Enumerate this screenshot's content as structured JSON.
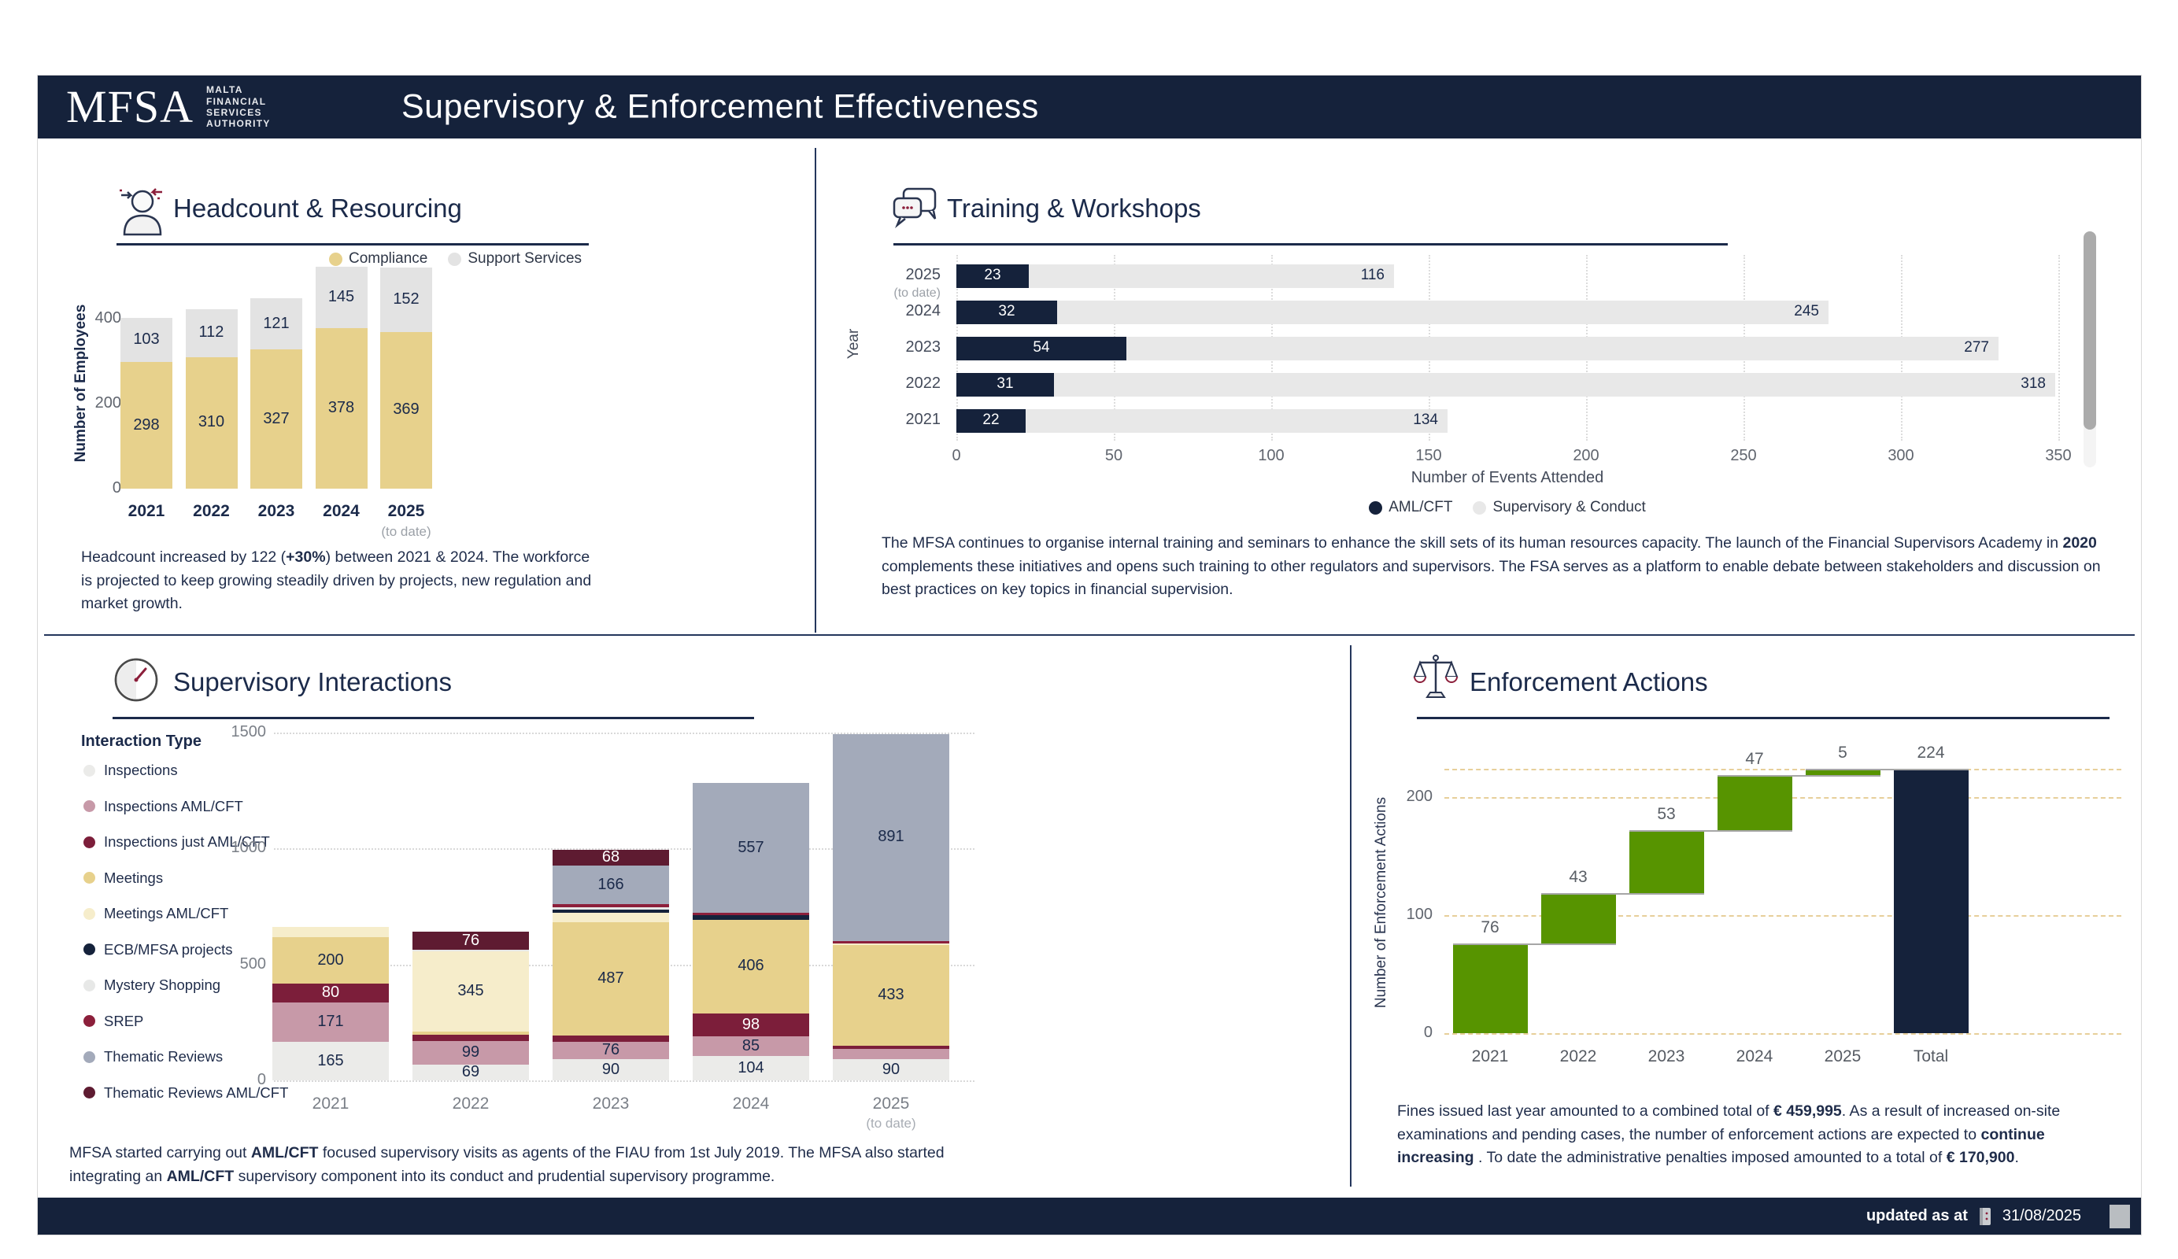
{
  "header": {
    "logo": "MFSA",
    "logo_lines": [
      "MALTA",
      "FINANCIAL",
      "SERVICES",
      "AUTHORITY"
    ],
    "title": "Supervisory & Enforcement Effectiveness"
  },
  "footer": {
    "updated_label": "updated as at",
    "date": "31/08/2025"
  },
  "icons": {
    "person-icon": "person outline with red/navy arrows",
    "chat-icon": "speech bubbles with dots",
    "gauge-icon": "speedometer dial with maroon needle",
    "scales-icon": "scales of justice",
    "calendar-icon": "small calendar slicer glyph"
  },
  "sections": {
    "headcount": {
      "title": "Headcount & Resourcing",
      "note": [
        {
          "t": "Headcount increased by 122 ("
        },
        {
          "t": "+30%",
          "b": true
        },
        {
          "t": ") between 2021 & 2024. The workforce is projected to keep growing steadily driven by projects, new regulation and market growth."
        }
      ]
    },
    "training": {
      "title": "Training & Workshops",
      "note": [
        {
          "t": "The MFSA continues to organise internal training and seminars to enhance the skill sets of its human resources capacity. The launch of the Financial Supervisors Academy in "
        },
        {
          "t": "2020",
          "b": true
        },
        {
          "t": " complements these initiatives and opens such training to other regulators and supervisors. The FSA serves as a platform to enable debate between stakeholders and discussion on best practices on key topics in financial supervision."
        }
      ]
    },
    "interactions": {
      "title": "Supervisory Interactions",
      "legend_title": "Interaction Type",
      "note": [
        {
          "t": "MFSA started carrying out "
        },
        {
          "t": "AML/CFT",
          "b": true
        },
        {
          "t": " focused supervisory visits as agents of the FIAU from 1st July 2019. The MFSA also started integrating an "
        },
        {
          "t": "AML/CFT",
          "b": true
        },
        {
          "t": " supervisory component into its conduct and prudential supervisory programme."
        }
      ]
    },
    "enforcement": {
      "title": "Enforcement Actions",
      "note": [
        {
          "t": "Fines issued last year amounted to a combined total of "
        },
        {
          "t": "€ 459,995",
          "b": true
        },
        {
          "t": ". As a result of increased on-site examinations and pending cases, the number of enforcement actions are expected to "
        },
        {
          "t": "continue increasing",
          "b": true
        },
        {
          "t": " . To date the administrative penalties imposed amounted to a total of "
        },
        {
          "t": "€ 170,900",
          "b": true
        },
        {
          "t": "."
        }
      ]
    }
  },
  "chart_data": [
    {
      "id": "headcount",
      "type": "bar",
      "stacked": true,
      "title": "Headcount & Resourcing",
      "categories": [
        "2021",
        "2022",
        "2023",
        "2024",
        "2025"
      ],
      "last_category_note": "(to date)",
      "series": [
        {
          "name": "Compliance",
          "color": "#E7D18C",
          "values": [
            298,
            310,
            327,
            378,
            369
          ]
        },
        {
          "name": "Support Services",
          "color": "#E3E3E3",
          "values": [
            103,
            112,
            121,
            145,
            152
          ]
        }
      ],
      "ylabel": "Number of Employees",
      "yticks": [
        0,
        200,
        400
      ],
      "ylim": [
        0,
        530
      ],
      "legend_position": "top"
    },
    {
      "id": "training",
      "type": "bar",
      "orientation": "horizontal",
      "stacked": true,
      "title": "Training & Workshops",
      "categories": [
        "2025",
        "2024",
        "2023",
        "2022",
        "2021"
      ],
      "first_category_note": "(to date)",
      "series": [
        {
          "name": "AML/CFT",
          "color": "#15223B",
          "values": [
            23,
            32,
            54,
            31,
            22
          ]
        },
        {
          "name": "Supervisory & Conduct",
          "color": "#E8E8E8",
          "values": [
            116,
            245,
            277,
            318,
            134
          ]
        }
      ],
      "xlabel": "Number of Events Attended",
      "ylabel": "Year",
      "xticks": [
        0,
        50,
        100,
        150,
        200,
        250,
        300,
        350
      ],
      "xlim": [
        0,
        350
      ],
      "legend_position": "bottom"
    },
    {
      "id": "interactions",
      "type": "bar",
      "stacked": true,
      "title": "Supervisory Interactions",
      "legend_title": "Interaction Type",
      "categories": [
        "2021",
        "2022",
        "2023",
        "2024",
        "2025"
      ],
      "last_category_note": "(to date)",
      "series": [
        {
          "name": "Inspections",
          "color": "#EBEBE9",
          "values": [
            165,
            69,
            90,
            104,
            90
          ]
        },
        {
          "name": "Inspections  AML/CFT",
          "color": "#C799A8",
          "values": [
            171,
            99,
            76,
            85,
            45
          ]
        },
        {
          "name": "Inspections just AML/CFT",
          "color": "#7C1E3A",
          "values": [
            80,
            30,
            28,
            98,
            15
          ]
        },
        {
          "name": "Meetings",
          "color": "#E7D18C",
          "values": [
            200,
            12,
            487,
            406,
            433
          ]
        },
        {
          "name": "Meetings  AML/CFT",
          "color": "#F6EDCB",
          "values": [
            45,
            345,
            40,
            0,
            8
          ]
        },
        {
          "name": "ECB/MFSA projects",
          "color": "#15223B",
          "values": [
            0,
            0,
            15,
            18,
            0
          ]
        },
        {
          "name": "Mystery Shopping",
          "color": "#E7E8E7",
          "values": [
            0,
            8,
            10,
            0,
            0
          ]
        },
        {
          "name": "SREP",
          "color": "#8C1F3B",
          "values": [
            0,
            0,
            12,
            12,
            10
          ]
        },
        {
          "name": "Thematic Reviews",
          "color": "#A3AABA",
          "values": [
            0,
            0,
            166,
            557,
            891
          ]
        },
        {
          "name": "Thematic Reviews  AML/CFT",
          "color": "#5E1B31",
          "values": [
            0,
            76,
            68,
            0,
            0
          ]
        }
      ],
      "yticks": [
        0,
        500,
        1000,
        1500
      ],
      "ylim": [
        0,
        1500
      ],
      "label_min": 60
    },
    {
      "id": "enforcement",
      "type": "waterfall",
      "title": "Enforcement Actions",
      "categories": [
        "2021",
        "2022",
        "2023",
        "2024",
        "2025",
        "Total"
      ],
      "values": [
        76,
        43,
        53,
        47,
        5,
        224
      ],
      "is_total": [
        false,
        false,
        false,
        false,
        false,
        true
      ],
      "increase_color": "#579400",
      "total_color": "#15223B",
      "ylabel": "Number of Enforcement Actions",
      "yticks": [
        0,
        100,
        200
      ],
      "ylim": [
        0,
        240
      ],
      "top_reference_line": 224
    }
  ]
}
